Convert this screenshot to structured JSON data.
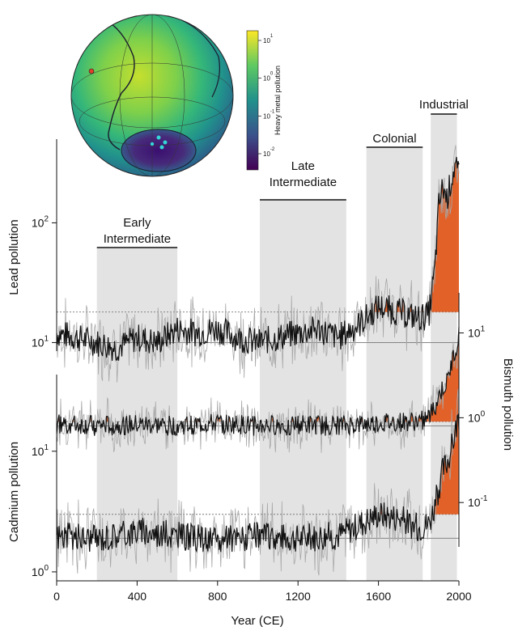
{
  "chart_data": {
    "type": "line",
    "xlabel": "Year (CE)",
    "x_range": [
      0,
      2000
    ],
    "x_ticks": [
      "0",
      "400",
      "800",
      "1200",
      "1600",
      "2000"
    ],
    "periods": [
      {
        "label_lines": [
          "Early",
          "Intermediate"
        ],
        "start": 200,
        "end": 600
      },
      {
        "label_lines": [
          "Late",
          "Intermediate"
        ],
        "start": 1010,
        "end": 1440
      },
      {
        "label_lines": [
          "Colonial"
        ],
        "start": 1540,
        "end": 1820
      },
      {
        "label_lines": [
          "Industrial"
        ],
        "start": 1860,
        "end": 1990
      }
    ],
    "panels": [
      {
        "ylabel": "Lead pollution",
        "scale": "log",
        "yticks": [
          "10^1",
          "10^2"
        ],
        "yrange": [
          5,
          500
        ],
        "baseline": 10,
        "threshold": 18,
        "series_note": "annual (gray) and smoothed (black) records; orange fill above threshold",
        "smoothed": {
          "x": [
            0,
            100,
            200,
            300,
            400,
            500,
            600,
            700,
            800,
            900,
            1000,
            1100,
            1200,
            1300,
            1400,
            1500,
            1600,
            1700,
            1800,
            1850,
            1880,
            1900,
            1920,
            1940,
            1960,
            1980,
            2000
          ],
          "y": [
            12,
            11,
            10,
            9,
            11,
            10,
            13,
            12,
            13,
            11,
            10,
            11,
            12,
            13,
            11,
            14,
            20,
            18,
            16,
            17,
            40,
            140,
            200,
            160,
            220,
            300,
            240
          ]
        }
      },
      {
        "ylabel": "Bismuth pollution",
        "scale": "log",
        "yticks": [
          "10^-1",
          "10^0",
          "10^1"
        ],
        "yrange": [
          0.03,
          20
        ],
        "baseline": 0.8,
        "threshold": 0.9,
        "smoothed": {
          "x": [
            0,
            200,
            400,
            600,
            800,
            1000,
            1200,
            1400,
            1600,
            1800,
            1850,
            1880,
            1900,
            1920,
            1940,
            1960,
            1980,
            2000
          ],
          "y": [
            0.85,
            0.8,
            0.82,
            0.8,
            0.85,
            0.8,
            0.82,
            0.8,
            0.85,
            0.9,
            1.0,
            1.3,
            1.8,
            2.2,
            2.5,
            4,
            6,
            9
          ]
        }
      },
      {
        "ylabel": "Cadmium pollution",
        "scale": "log",
        "yticks": [
          "10^0",
          "10^1"
        ],
        "yrange": [
          0.6,
          40
        ],
        "baseline": 1.9,
        "threshold": 3.0,
        "smoothed": {
          "x": [
            0,
            200,
            400,
            600,
            800,
            1000,
            1200,
            1400,
            1600,
            1700,
            1800,
            1850,
            1880,
            1900,
            1920,
            1940,
            1960,
            1980,
            2000
          ],
          "y": [
            2.0,
            1.9,
            2.2,
            2.0,
            1.8,
            2.0,
            1.9,
            2.0,
            3.0,
            2.8,
            2.3,
            2.5,
            3.5,
            5,
            7,
            8,
            10,
            14,
            20
          ]
        }
      }
    ]
  },
  "inset": {
    "colorbar_title": "Heavy metal pollution",
    "colorbar_ticks": [
      "10^1",
      "10^0",
      "10^-1",
      "10^-2"
    ]
  }
}
